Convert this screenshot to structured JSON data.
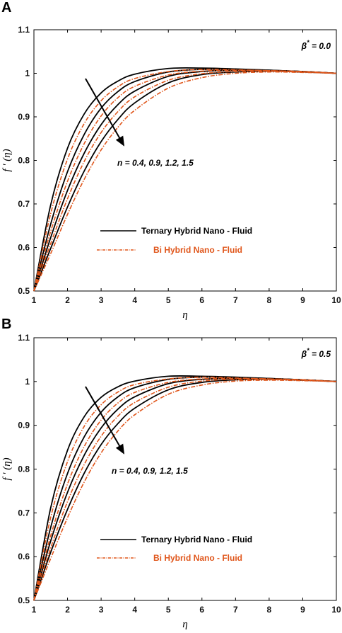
{
  "chart_data": [
    {
      "panel_label": "A",
      "type": "line",
      "xlabel": "η",
      "ylabel": "f ' (η)",
      "xlim": [
        1,
        10
      ],
      "ylim": [
        0.5,
        1.1
      ],
      "xticks": [
        "1",
        "2",
        "3",
        "4",
        "5",
        "6",
        "7",
        "8",
        "9",
        "10"
      ],
      "yticks": [
        "0.5",
        "0.6",
        "0.7",
        "0.8",
        "0.9",
        "1",
        "1.1"
      ],
      "annotation_beta": "β* = 0.0",
      "annotation_n": "n = 0.4, 0.9, 1.2, 1.5",
      "grid": false,
      "legend_placement": "center-left",
      "legend": [
        {
          "label": "Ternary Hybrid Nano - Fluid",
          "color": "#000000",
          "style": "solid"
        },
        {
          "label": "Bi Hybrid Nano - Fluid",
          "color": "#e0561b",
          "style": "dash-dot"
        }
      ],
      "series": [
        {
          "group": "ternary",
          "n": 0.4,
          "color": "#000000",
          "style": "solid",
          "x": [
            1,
            1.5,
            2,
            2.5,
            3,
            3.5,
            4,
            5,
            6,
            7,
            8,
            9,
            10
          ],
          "y": [
            0.5,
            0.698,
            0.828,
            0.907,
            0.955,
            0.982,
            0.998,
            1.011,
            1.012,
            1.01,
            1.007,
            1.004,
            1.0
          ]
        },
        {
          "group": "ternary",
          "n": 0.9,
          "color": "#000000",
          "style": "solid",
          "x": [
            1,
            1.5,
            2,
            2.5,
            3,
            3.5,
            4,
            5,
            6,
            7,
            8,
            9,
            10
          ],
          "y": [
            0.5,
            0.654,
            0.774,
            0.86,
            0.92,
            0.958,
            0.981,
            1.003,
            1.009,
            1.009,
            1.007,
            1.004,
            1.0
          ]
        },
        {
          "group": "ternary",
          "n": 1.2,
          "color": "#000000",
          "style": "solid",
          "x": [
            1,
            1.5,
            2,
            2.5,
            3,
            3.5,
            4,
            5,
            6,
            7,
            8,
            9,
            10
          ],
          "y": [
            0.5,
            0.623,
            0.731,
            0.817,
            0.882,
            0.928,
            0.959,
            0.993,
            1.004,
            1.007,
            1.006,
            1.004,
            1.0
          ]
        },
        {
          "group": "ternary",
          "n": 1.5,
          "color": "#000000",
          "style": "solid",
          "x": [
            1,
            1.5,
            2,
            2.5,
            3,
            3.5,
            4,
            5,
            6,
            7,
            8,
            9,
            10
          ],
          "y": [
            0.5,
            0.598,
            0.693,
            0.776,
            0.843,
            0.894,
            0.932,
            0.978,
            0.997,
            1.003,
            1.005,
            1.003,
            1.0
          ]
        },
        {
          "group": "bi",
          "n": 0.4,
          "color": "#e0561b",
          "style": "dash-dot",
          "x": [
            1,
            1.5,
            2,
            2.5,
            3,
            3.5,
            4,
            5,
            6,
            7,
            8,
            9,
            10
          ],
          "y": [
            0.5,
            0.678,
            0.803,
            0.885,
            0.937,
            0.969,
            0.988,
            1.004,
            1.009,
            1.008,
            1.006,
            1.004,
            1.0
          ]
        },
        {
          "group": "bi",
          "n": 0.9,
          "color": "#e0561b",
          "style": "dash-dot",
          "x": [
            1,
            1.5,
            2,
            2.5,
            3,
            3.5,
            4,
            5,
            6,
            7,
            8,
            9,
            10
          ],
          "y": [
            0.5,
            0.637,
            0.752,
            0.839,
            0.902,
            0.944,
            0.97,
            0.996,
            1.005,
            1.007,
            1.006,
            1.004,
            1.0
          ]
        },
        {
          "group": "bi",
          "n": 1.2,
          "color": "#e0561b",
          "style": "dash-dot",
          "x": [
            1,
            1.5,
            2,
            2.5,
            3,
            3.5,
            4,
            5,
            6,
            7,
            8,
            9,
            10
          ],
          "y": [
            0.5,
            0.609,
            0.712,
            0.798,
            0.864,
            0.912,
            0.946,
            0.984,
            0.999,
            1.004,
            1.005,
            1.003,
            1.0
          ]
        },
        {
          "group": "bi",
          "n": 1.5,
          "color": "#e0561b",
          "style": "dash-dot",
          "x": [
            1,
            1.5,
            2,
            2.5,
            3,
            3.5,
            4,
            5,
            6,
            7,
            8,
            9,
            10
          ],
          "y": [
            0.5,
            0.586,
            0.676,
            0.757,
            0.824,
            0.876,
            0.915,
            0.966,
            0.99,
            1.0,
            1.003,
            1.002,
            1.0
          ]
        }
      ]
    },
    {
      "panel_label": "B",
      "type": "line",
      "xlabel": "η",
      "ylabel": "f ' (η)",
      "xlim": [
        1,
        10
      ],
      "ylim": [
        0.5,
        1.1
      ],
      "xticks": [
        "1",
        "2",
        "3",
        "4",
        "5",
        "6",
        "7",
        "8",
        "9",
        "10"
      ],
      "yticks": [
        "0.5",
        "0.6",
        "0.7",
        "0.8",
        "0.9",
        "1",
        "1.1"
      ],
      "annotation_beta": "β* = 0.5",
      "annotation_n": "n = 0.4, 0.9, 1.2, 1.5",
      "grid": false,
      "legend_placement": "bottom-left",
      "legend": [
        {
          "label": "Ternary Hybrid Nano - Fluid",
          "color": "#000000",
          "style": "solid"
        },
        {
          "label": "Bi Hybrid Nano - Fluid",
          "color": "#e0561b",
          "style": "dash-dot"
        }
      ],
      "series": [
        {
          "group": "ternary",
          "n": 0.4,
          "color": "#000000",
          "style": "solid",
          "x": [
            1,
            1.5,
            2,
            2.5,
            3,
            3.5,
            4,
            5,
            6,
            7,
            8,
            9,
            10
          ],
          "y": [
            0.5,
            0.712,
            0.843,
            0.92,
            0.964,
            0.988,
            1.001,
            1.012,
            1.012,
            1.01,
            1.007,
            1.004,
            1.0
          ]
        },
        {
          "group": "ternary",
          "n": 0.9,
          "color": "#000000",
          "style": "solid",
          "x": [
            1,
            1.5,
            2,
            2.5,
            3,
            3.5,
            4,
            5,
            6,
            7,
            8,
            9,
            10
          ],
          "y": [
            0.5,
            0.667,
            0.79,
            0.874,
            0.93,
            0.965,
            0.986,
            1.005,
            1.01,
            1.009,
            1.007,
            1.004,
            1.0
          ]
        },
        {
          "group": "ternary",
          "n": 1.2,
          "color": "#000000",
          "style": "solid",
          "x": [
            1,
            1.5,
            2,
            2.5,
            3,
            3.5,
            4,
            5,
            6,
            7,
            8,
            9,
            10
          ],
          "y": [
            0.5,
            0.636,
            0.747,
            0.832,
            0.894,
            0.937,
            0.965,
            0.995,
            1.005,
            1.007,
            1.006,
            1.004,
            1.0
          ]
        },
        {
          "group": "ternary",
          "n": 1.5,
          "color": "#000000",
          "style": "solid",
          "x": [
            1,
            1.5,
            2,
            2.5,
            3,
            3.5,
            4,
            5,
            6,
            7,
            8,
            9,
            10
          ],
          "y": [
            0.5,
            0.61,
            0.708,
            0.791,
            0.856,
            0.904,
            0.939,
            0.981,
            0.998,
            1.004,
            1.005,
            1.003,
            1.0
          ]
        },
        {
          "group": "bi",
          "n": 0.4,
          "color": "#e0561b",
          "style": "dash-dot",
          "x": [
            1,
            1.5,
            2,
            2.5,
            3,
            3.5,
            4,
            5,
            6,
            7,
            8,
            9,
            10
          ],
          "y": [
            0.5,
            0.69,
            0.817,
            0.898,
            0.947,
            0.976,
            0.993,
            1.006,
            1.01,
            1.008,
            1.006,
            1.004,
            1.0
          ]
        },
        {
          "group": "bi",
          "n": 0.9,
          "color": "#e0561b",
          "style": "dash-dot",
          "x": [
            1,
            1.5,
            2,
            2.5,
            3,
            3.5,
            4,
            5,
            6,
            7,
            8,
            9,
            10
          ],
          "y": [
            0.5,
            0.648,
            0.766,
            0.852,
            0.912,
            0.951,
            0.975,
            0.998,
            1.006,
            1.007,
            1.006,
            1.004,
            1.0
          ]
        },
        {
          "group": "bi",
          "n": 1.2,
          "color": "#e0561b",
          "style": "dash-dot",
          "x": [
            1,
            1.5,
            2,
            2.5,
            3,
            3.5,
            4,
            5,
            6,
            7,
            8,
            9,
            10
          ],
          "y": [
            0.5,
            0.62,
            0.726,
            0.811,
            0.875,
            0.921,
            0.952,
            0.987,
            1.001,
            1.005,
            1.005,
            1.003,
            1.0
          ]
        },
        {
          "group": "bi",
          "n": 1.5,
          "color": "#e0561b",
          "style": "dash-dot",
          "x": [
            1,
            1.5,
            2,
            2.5,
            3,
            3.5,
            4,
            5,
            6,
            7,
            8,
            9,
            10
          ],
          "y": [
            0.5,
            0.596,
            0.689,
            0.771,
            0.837,
            0.887,
            0.924,
            0.971,
            0.992,
            1.001,
            1.003,
            1.002,
            1.0
          ]
        }
      ]
    }
  ]
}
